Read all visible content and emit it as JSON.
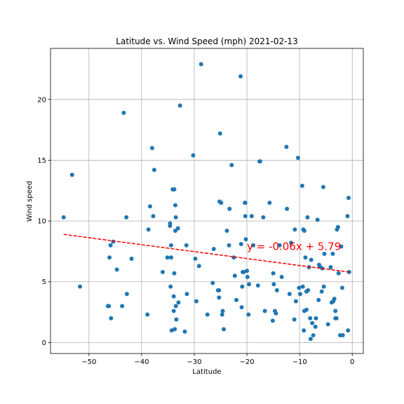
{
  "chart_data": {
    "type": "scatter",
    "title": "Latitude vs. Wind Speed (mph) 2021-02-13",
    "xlabel": "Latitude",
    "ylabel": "Wind speed",
    "xlim": [
      -57.3,
      2.1
    ],
    "ylim": [
      -0.9,
      24.2
    ],
    "xticks": [
      -50,
      -40,
      -30,
      -20,
      -10,
      0
    ],
    "yticks": [
      0,
      5,
      10,
      15,
      20
    ],
    "xtick_labels": [
      "−50",
      "−40",
      "−30",
      "−20",
      "−10",
      "0"
    ],
    "ytick_labels": [
      "0",
      "5",
      "10",
      "15",
      "20"
    ],
    "grid": true,
    "marker_color": "#1f77b4",
    "series": [
      {
        "kind": "scatter",
        "points": [
          [
            -54.8,
            10.3
          ],
          [
            -53.2,
            13.8
          ],
          [
            -51.7,
            4.6
          ],
          [
            -46.4,
            3.0
          ],
          [
            -46.2,
            3.0
          ],
          [
            -46.1,
            7.0
          ],
          [
            -45.9,
            8.0
          ],
          [
            -45.8,
            2.0
          ],
          [
            -45.4,
            8.3
          ],
          [
            -44.7,
            6.0
          ],
          [
            -43.7,
            3.0
          ],
          [
            -43.4,
            18.9
          ],
          [
            -42.9,
            10.3
          ],
          [
            -42.8,
            4.0
          ],
          [
            -41.9,
            6.9
          ],
          [
            -38.9,
            2.3
          ],
          [
            -38.7,
            9.3
          ],
          [
            -38.4,
            11.2
          ],
          [
            -38.0,
            16.0
          ],
          [
            -37.8,
            10.4
          ],
          [
            -37.6,
            14.2
          ],
          [
            -36.0,
            5.8
          ],
          [
            -35.1,
            7.0
          ],
          [
            -34.6,
            9.6
          ],
          [
            -34.6,
            9.8
          ],
          [
            -34.5,
            4.6
          ],
          [
            -34.4,
            7.0
          ],
          [
            -34.4,
            8.0
          ],
          [
            -34.3,
            1.0
          ],
          [
            -34.1,
            12.6
          ],
          [
            -33.9,
            3.8
          ],
          [
            -33.9,
            2.6
          ],
          [
            -33.8,
            12.6
          ],
          [
            -33.8,
            5.7
          ],
          [
            -33.7,
            1.1
          ],
          [
            -33.6,
            9.2
          ],
          [
            -33.6,
            11.3
          ],
          [
            -33.5,
            10.3
          ],
          [
            -33.5,
            3.0
          ],
          [
            -33.4,
            1.9
          ],
          [
            -33.1,
            9.4
          ],
          [
            -33.0,
            3.3
          ],
          [
            -32.7,
            19.5
          ],
          [
            -31.8,
            0.9
          ],
          [
            -31.5,
            8.0
          ],
          [
            -31.4,
            4.0
          ],
          [
            -30.2,
            15.4
          ],
          [
            -29.8,
            6.9
          ],
          [
            -29.6,
            3.4
          ],
          [
            -29.1,
            6.3
          ],
          [
            -28.7,
            22.9
          ],
          [
            -27.5,
            2.3
          ],
          [
            -26.5,
            4.9
          ],
          [
            -26.3,
            7.7
          ],
          [
            -25.5,
            4.3
          ],
          [
            -25.3,
            4.3
          ],
          [
            -25.3,
            3.7
          ],
          [
            -25.2,
            11.6
          ],
          [
            -25.1,
            17.2
          ],
          [
            -24.9,
            11.5
          ],
          [
            -24.7,
            2.3
          ],
          [
            -24.6,
            2.6
          ],
          [
            -24.4,
            1.1
          ],
          [
            -23.8,
            9.2
          ],
          [
            -23.4,
            8.0
          ],
          [
            -23.3,
            11.0
          ],
          [
            -22.9,
            14.6
          ],
          [
            -22.5,
            7.0
          ],
          [
            -22.3,
            5.5
          ],
          [
            -22.0,
            3.5
          ],
          [
            -21.2,
            21.9
          ],
          [
            -21.1,
            8.1
          ],
          [
            -21.0,
            2.9
          ],
          [
            -20.9,
            4.6
          ],
          [
            -20.8,
            5.8
          ],
          [
            -20.6,
            5.8
          ],
          [
            -20.4,
            11.5
          ],
          [
            -20.3,
            11.5
          ],
          [
            -20.3,
            10.4
          ],
          [
            -20.2,
            8.5
          ],
          [
            -20.0,
            5.9
          ],
          [
            -19.9,
            5.4
          ],
          [
            -19.7,
            2.3
          ],
          [
            -19.6,
            4.8
          ],
          [
            -19.1,
            10.4
          ],
          [
            -18.8,
            8.0
          ],
          [
            -17.9,
            4.7
          ],
          [
            -17.6,
            14.9
          ],
          [
            -17.5,
            14.9
          ],
          [
            -16.9,
            10.3
          ],
          [
            -16.6,
            2.6
          ],
          [
            -15.7,
            11.5
          ],
          [
            -15.1,
            1.8
          ],
          [
            -15.0,
            5.7
          ],
          [
            -14.9,
            4.8
          ],
          [
            -14.7,
            2.6
          ],
          [
            -14.5,
            2.4
          ],
          [
            -14.3,
            4.3
          ],
          [
            -13.8,
            8.0
          ],
          [
            -13.4,
            5.4
          ],
          [
            -12.5,
            16.1
          ],
          [
            -12.4,
            11.0
          ],
          [
            -11.9,
            4.0
          ],
          [
            -11.6,
            8.2
          ],
          [
            -11.0,
            1.9
          ],
          [
            -10.9,
            9.3
          ],
          [
            -10.7,
            3.4
          ],
          [
            -10.3,
            15.2
          ],
          [
            -10.1,
            4.5
          ],
          [
            -9.9,
            4.0
          ],
          [
            -9.5,
            12.9
          ],
          [
            -9.4,
            4.6
          ],
          [
            -9.3,
            9.3
          ],
          [
            -9.2,
            1.0
          ],
          [
            -9.1,
            2.6
          ],
          [
            -9.1,
            9.2
          ],
          [
            -8.9,
            7.0
          ],
          [
            -8.7,
            2.7
          ],
          [
            -8.7,
            4.2
          ],
          [
            -8.5,
            10.3
          ],
          [
            -8.4,
            4.3
          ],
          [
            -8.2,
            6.2
          ],
          [
            -8.0,
            2.0
          ],
          [
            -7.9,
            0.3
          ],
          [
            -7.8,
            6.8
          ],
          [
            -7.6,
            1.6
          ],
          [
            -7.4,
            0.6
          ],
          [
            -7.0,
            1.3
          ],
          [
            -6.9,
            2.0
          ],
          [
            -6.6,
            10.1
          ],
          [
            -6.4,
            3.5
          ],
          [
            -6.3,
            6.4
          ],
          [
            -6.2,
            6.3
          ],
          [
            -5.8,
            4.2
          ],
          [
            -5.7,
            6.1
          ],
          [
            -5.5,
            12.8
          ],
          [
            -5.4,
            4.6
          ],
          [
            -5.3,
            7.3
          ],
          [
            -4.6,
            1.5
          ],
          [
            -4.1,
            6.2
          ],
          [
            -3.9,
            3.3
          ],
          [
            -3.7,
            7.3
          ],
          [
            -3.6,
            3.4
          ],
          [
            -3.4,
            3.6
          ],
          [
            -3.2,
            2.0
          ],
          [
            -3.2,
            2.6
          ],
          [
            -3.0,
            2.0
          ],
          [
            -2.9,
            9.3
          ],
          [
            -2.7,
            9.5
          ],
          [
            -2.6,
            5.7
          ],
          [
            -2.3,
            0.6
          ],
          [
            -2.1,
            7.9
          ],
          [
            -1.9,
            4.5
          ],
          [
            -1.8,
            0.6
          ],
          [
            -0.9,
            10.4
          ],
          [
            -0.8,
            1.0
          ],
          [
            -0.7,
            11.9
          ],
          [
            -0.6,
            5.8
          ]
        ]
      },
      {
        "kind": "regression-line",
        "color": "#ff0000",
        "style": "dashed",
        "x": [
          -54.8,
          -0.6
        ],
        "y": [
          8.9,
          5.8
        ]
      }
    ],
    "annotations": [
      {
        "text": "y = -0.06x + 5.79",
        "x": -20.0,
        "y": 7.6,
        "color": "#ff0000"
      }
    ]
  }
}
